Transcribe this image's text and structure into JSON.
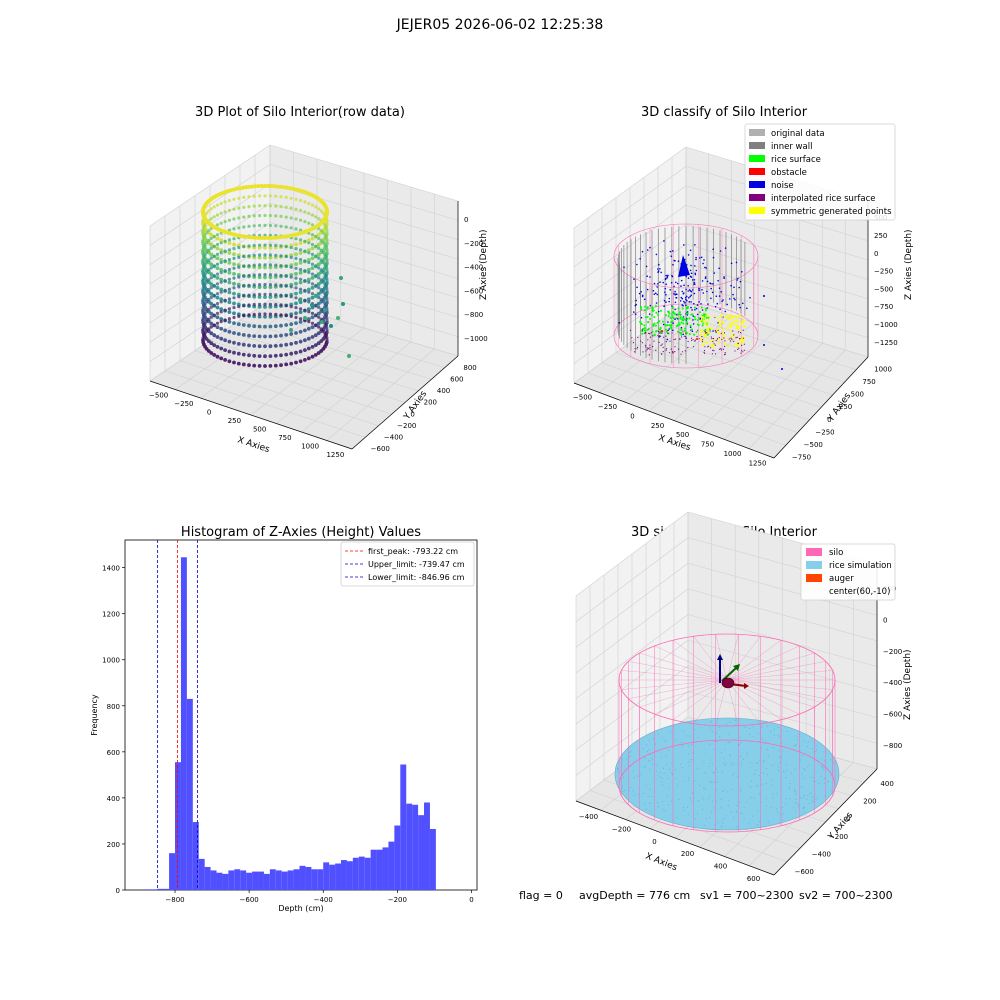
{
  "suptitle": "JEJER05 2026-06-02 12:25:38",
  "footer": {
    "flag": "flag = 0",
    "avg": "avgDepth = 776 cm",
    "sv1": "sv1 = 700~2300",
    "sv2": "sv2 = 700~2300"
  },
  "colors": {
    "original": "#b0b0b0",
    "inner_wall": "#808080",
    "rice_surface": "#00ff00",
    "obstacle": "#ff0000",
    "noise": "#0000e0",
    "interp": "#800080",
    "symmetric": "#ffff00",
    "silo": "#ff69b4",
    "rice_sim": "#87ceeb",
    "auger": "#ff4500",
    "hist_bar": "#5050ff"
  },
  "panels": {
    "p1": {
      "title": "3D Plot of Silo Interior(row data)",
      "xlabel": "X Axies",
      "ylabel": "Y Axies",
      "zlabel": "Z Axies (Depth)",
      "xticks": [
        "−500",
        "−250",
        "0",
        "250",
        "500",
        "750",
        "1000",
        "1250"
      ],
      "yticks": [
        "−600",
        "−400",
        "−200",
        "0",
        "200",
        "400",
        "600",
        "800"
      ],
      "zticks": [
        "0",
        "−200",
        "−400",
        "−600",
        "−800",
        "−1000"
      ]
    },
    "p2": {
      "title": "3D classify of Silo Interior",
      "xlabel": "X Axies",
      "ylabel": "Y Axies",
      "zlabel": "Z Axies (Depth)",
      "xticks": [
        "−500",
        "−250",
        "0",
        "250",
        "500",
        "750",
        "1000",
        "1250"
      ],
      "yticks": [
        "−750",
        "−500",
        "−250",
        "0",
        "250",
        "500",
        "750",
        "1000"
      ],
      "zticks": [
        "500",
        "250",
        "0",
        "−250",
        "−500",
        "−750",
        "−1000",
        "−1250"
      ],
      "legend": [
        {
          "label": "original data",
          "color": "#b0b0b0"
        },
        {
          "label": "inner wall",
          "color": "#808080"
        },
        {
          "label": "rice surface",
          "color": "#00ff00"
        },
        {
          "label": "obstacle",
          "color": "#ff0000"
        },
        {
          "label": "noise",
          "color": "#0000e0"
        },
        {
          "label": "interpolated rice surface",
          "color": "#800080"
        },
        {
          "label": "symmetric generated points",
          "color": "#ffff00"
        }
      ]
    },
    "p4": {
      "title": "3D simulation of Silo Interior",
      "xlabel": "X Axies",
      "ylabel": "Y Axies",
      "zlabel": "Z Axies (Depth)",
      "xticks": [
        "−400",
        "−200",
        "0",
        "200",
        "400",
        "600"
      ],
      "yticks": [
        "−600",
        "−400",
        "−200",
        "0",
        "200",
        "400"
      ],
      "zticks": [
        "200",
        "0",
        "−200",
        "−400",
        "−600",
        "−800"
      ],
      "legend": [
        {
          "label": "silo",
          "color": "#ff69b4"
        },
        {
          "label": "rice simulation",
          "color": "#87ceeb"
        },
        {
          "label": "auger",
          "color": "#ff4500"
        },
        {
          "label": "center(60,-10)",
          "color": ""
        }
      ]
    }
  },
  "chart_data": {
    "type": "bar",
    "title": "Histogram of Z-Axies (Height) Values",
    "xlabel": "Depth (cm)",
    "ylabel": "Frequency",
    "xlim": [
      -935,
      15
    ],
    "ylim": [
      0,
      1520
    ],
    "xticks": [
      -800,
      -600,
      -400,
      -200,
      0
    ],
    "yticks": [
      0,
      200,
      400,
      600,
      800,
      1000,
      1200,
      1400
    ],
    "bin_width": 16,
    "bin_starts": [
      -880,
      -864,
      -848,
      -832,
      -816,
      -800,
      -784,
      -768,
      -752,
      -736,
      -720,
      -704,
      -688,
      -672,
      -656,
      -640,
      -624,
      -608,
      -592,
      -576,
      -560,
      -544,
      -528,
      -512,
      -496,
      -480,
      -464,
      -448,
      -432,
      -416,
      -400,
      -384,
      -368,
      -352,
      -336,
      -320,
      -304,
      -288,
      -272,
      -256,
      -240,
      -224,
      -208,
      -192,
      -176,
      -160,
      -144,
      -128,
      -112,
      -96,
      -80,
      -64,
      -48,
      -32,
      -16
    ],
    "values": [
      3,
      3,
      5,
      5,
      160,
      555,
      1445,
      830,
      295,
      135,
      100,
      85,
      75,
      70,
      85,
      90,
      85,
      75,
      80,
      80,
      70,
      90,
      85,
      80,
      85,
      90,
      105,
      100,
      90,
      90,
      120,
      110,
      115,
      130,
      125,
      140,
      145,
      140,
      175,
      175,
      185,
      210,
      280,
      545,
      375,
      370,
      325,
      380,
      265,
      0,
      0,
      0,
      0,
      0,
      0
    ],
    "lines": [
      {
        "label": "first_peak: -793.22 cm",
        "x": -793.22,
        "color": "#ff0000"
      },
      {
        "label": "Upper_limit: -739.47 cm",
        "x": -739.47,
        "color": "#0000cc"
      },
      {
        "label": "Lower_limit: -846.96 cm",
        "x": -846.96,
        "color": "#0000cc"
      }
    ],
    "legend_loc": "upper right"
  }
}
